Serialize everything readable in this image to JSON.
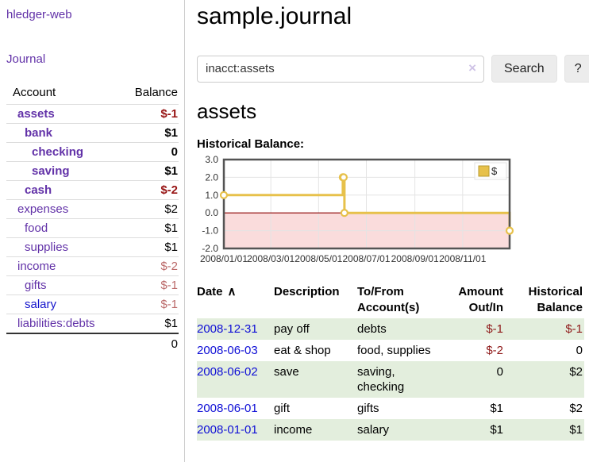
{
  "brand": "hledger-web",
  "sidebar": {
    "journal_link": "Journal",
    "accounts": {
      "col_account": "Account",
      "col_balance": "Balance",
      "rows": [
        {
          "name": "assets",
          "balance": "$-1",
          "indent": 0,
          "emph": true,
          "neg": true,
          "highlight": false
        },
        {
          "name": "bank",
          "balance": "$1",
          "indent": 1,
          "emph": true,
          "neg": false,
          "highlight": false
        },
        {
          "name": "checking",
          "balance": "0",
          "indent": 2,
          "emph": true,
          "neg": false,
          "highlight": false
        },
        {
          "name": "saving",
          "balance": "$1",
          "indent": 2,
          "emph": true,
          "neg": false,
          "highlight": false
        },
        {
          "name": "cash",
          "balance": "$-2",
          "indent": 1,
          "emph": true,
          "neg": true,
          "highlight": false
        },
        {
          "name": "expenses",
          "balance": "$2",
          "indent": 0,
          "emph": false,
          "neg": false,
          "highlight": false
        },
        {
          "name": "food",
          "balance": "$1",
          "indent": 1,
          "emph": false,
          "neg": false,
          "highlight": false
        },
        {
          "name": "supplies",
          "balance": "$1",
          "indent": 1,
          "emph": false,
          "neg": false,
          "highlight": false
        },
        {
          "name": "income",
          "balance": "$-2",
          "indent": 0,
          "emph": false,
          "neg": true,
          "highlight": false
        },
        {
          "name": "gifts",
          "balance": "$-1",
          "indent": 1,
          "emph": false,
          "neg": true,
          "highlight": false
        },
        {
          "name": "salary",
          "balance": "$-1",
          "indent": 1,
          "emph": false,
          "neg": true,
          "highlight": true
        },
        {
          "name": "liabilities:debts",
          "balance": "$1",
          "indent": 0,
          "emph": false,
          "neg": false,
          "highlight": false
        }
      ],
      "total": "0"
    }
  },
  "main": {
    "title": "sample.journal",
    "search": {
      "value": "inacct:assets",
      "clear_icon": "×",
      "search_button": "Search",
      "help_button": "?"
    },
    "account_heading": "assets",
    "chart_title": "Historical Balance:"
  },
  "chart_data": {
    "type": "line",
    "step": true,
    "title": "Historical Balance:",
    "series": [
      {
        "name": "$",
        "points": [
          [
            "2008-01-01",
            1
          ],
          [
            "2008-06-01",
            2
          ],
          [
            "2008-06-02",
            2
          ],
          [
            "2008-06-03",
            0
          ],
          [
            "2008-12-31",
            -1
          ]
        ]
      }
    ],
    "x_range": [
      "2008-01-01",
      "2008-12-31"
    ],
    "ylim": [
      -2,
      3
    ],
    "yticks": [
      "3.0",
      "2.0",
      "1.0",
      "0.0",
      "-1.0",
      "-2.0"
    ],
    "xticks": [
      {
        "date": "2008-01-01",
        "label": "2008/01/01"
      },
      {
        "date": "2008-03-01",
        "label": "2008/03/01"
      },
      {
        "date": "2008-05-01",
        "label": "2008/05/01"
      },
      {
        "date": "2008-07-01",
        "label": "2008/07/01"
      },
      {
        "date": "2008-09-01",
        "label": "2008/09/01"
      },
      {
        "date": "2008-11-01",
        "label": "2008/11/01"
      }
    ],
    "legend": {
      "label": "$",
      "position": "top-right"
    },
    "grid": true,
    "colors": {
      "line": "#e7c14b",
      "marker_fill": "#ffffff",
      "negative_area": "#fadcdc",
      "zero_line": "#8b0000",
      "grid": "#e4e4e4",
      "border": "#545454",
      "legend_swatch_border": "#b99a2e"
    }
  },
  "register": {
    "headers": {
      "date": "Date",
      "sort_icon": "∧",
      "description": "Description",
      "tofrom": "To/From Account(s)",
      "amount": "Amount Out/In",
      "balance": "Historical Balance"
    },
    "rows": [
      {
        "date": "2008-12-31",
        "description": "pay off",
        "tofrom": "debts",
        "amount": "$-1",
        "balance": "$-1",
        "amount_neg": true,
        "balance_neg": true
      },
      {
        "date": "2008-06-03",
        "description": "eat & shop",
        "tofrom": "food, supplies",
        "amount": "$-2",
        "balance": "0",
        "amount_neg": true,
        "balance_neg": false
      },
      {
        "date": "2008-06-02",
        "description": "save",
        "tofrom": "saving,\nchecking",
        "amount": "0",
        "balance": "$2",
        "amount_neg": false,
        "balance_neg": false
      },
      {
        "date": "2008-06-01",
        "description": "gift",
        "tofrom": "gifts",
        "amount": "$1",
        "balance": "$2",
        "amount_neg": false,
        "balance_neg": false
      },
      {
        "date": "2008-01-01",
        "description": "income",
        "tofrom": "salary",
        "amount": "$1",
        "balance": "$1",
        "amount_neg": false,
        "balance_neg": false
      }
    ]
  },
  "colors": {
    "link_purple": "#6232a8",
    "link_blue": "#1414cc",
    "date_link_blue": "#0f0fd6",
    "negative_strong": "#971414",
    "negative_soft": "#bb6a6a",
    "table_negative": "#8f1a1a",
    "row_stripe_green": "#e3eedd"
  }
}
